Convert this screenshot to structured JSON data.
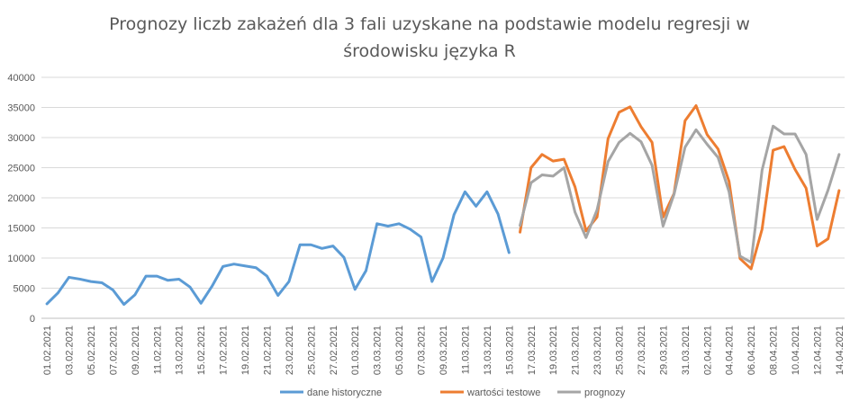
{
  "chart_data": {
    "type": "line",
    "title_line1": "Prognozy liczb zakażeń dla 3 fali uzyskane na podstawie modelu regresji w",
    "title_line2": "środowisku języka R",
    "ylim": [
      0,
      40000
    ],
    "y_ticks": [
      "0",
      "5000",
      "10000",
      "15000",
      "20000",
      "25000",
      "30000",
      "35000",
      "40000"
    ],
    "grid": true,
    "legend_position": "bottom",
    "categories": [
      "01.02.2021",
      "02.02.2021",
      "03.02.2021",
      "04.02.2021",
      "05.02.2021",
      "06.02.2021",
      "07.02.2021",
      "08.02.2021",
      "09.02.2021",
      "10.02.2021",
      "11.02.2021",
      "12.02.2021",
      "13.02.2021",
      "14.02.2021",
      "15.02.2021",
      "16.02.2021",
      "17.02.2021",
      "18.02.2021",
      "19.02.2021",
      "20.02.2021",
      "21.02.2021",
      "22.02.2021",
      "23.02.2021",
      "24.02.2021",
      "25.02.2021",
      "26.02.2021",
      "27.02.2021",
      "28.02.2021",
      "01.03.2021",
      "02.03.2021",
      "03.03.2021",
      "04.03.2021",
      "05.03.2021",
      "06.03.2021",
      "07.03.2021",
      "08.03.2021",
      "09.03.2021",
      "10.03.2021",
      "11.03.2021",
      "12.03.2021",
      "13.03.2021",
      "14.03.2021",
      "15.03.2021",
      "16.03.2021",
      "17.03.2021",
      "18.03.2021",
      "19.03.2021",
      "20.03.2021",
      "21.03.2021",
      "22.03.2021",
      "23.03.2021",
      "24.03.2021",
      "25.03.2021",
      "26.03.2021",
      "27.03.2021",
      "28.03.2021",
      "29.03.2021",
      "30.03.2021",
      "31.03.2021",
      "01.04.2021",
      "02.04.2021",
      "03.04.2021",
      "04.04.2021",
      "05.04.2021",
      "06.04.2021",
      "07.04.2021",
      "08.04.2021",
      "09.04.2021",
      "10.04.2021",
      "11.04.2021",
      "12.04.2021",
      "13.04.2021",
      "14.04.2021"
    ],
    "x_tick_labels": [
      "01.02.2021",
      "03.02.2021",
      "05.02.2021",
      "07.02.2021",
      "09.02.2021",
      "11.02.2021",
      "13.02.2021",
      "15.02.2021",
      "17.02.2021",
      "19.02.2021",
      "21.02.2021",
      "23.02.2021",
      "25.02.2021",
      "27.02.2021",
      "01.03.2021",
      "03.03.2021",
      "05.03.2021",
      "07.03.2021",
      "09.03.2021",
      "11.03.2021",
      "13.03.2021",
      "15.03.2021",
      "17.03.2021",
      "19.03.2021",
      "21.03.2021",
      "23.03.2021",
      "25.03.2021",
      "27.03.2021",
      "29.03.2021",
      "31.03.2021",
      "02.04.2021",
      "04.04.2021",
      "06.04.2021",
      "08.04.2021",
      "10.04.2021",
      "12.04.2021",
      "14.04.2021"
    ],
    "series": [
      {
        "name": "dane historyczne",
        "color": "#5b9bd5",
        "values": [
          2400,
          4200,
          6800,
          6500,
          6100,
          5900,
          4700,
          2300,
          3900,
          7000,
          7000,
          6300,
          6500,
          5200,
          2500,
          5300,
          8600,
          9000,
          8700,
          8400,
          7000,
          3800,
          6100,
          12200,
          12200,
          11600,
          12000,
          10100,
          4800,
          7900,
          15700,
          15300,
          15700,
          14800,
          13500,
          6100,
          10000,
          17200,
          21000,
          18600,
          21000,
          17300,
          10900,
          null,
          null,
          null,
          null,
          null,
          null,
          null,
          null,
          null,
          null,
          null,
          null,
          null,
          null,
          null,
          null,
          null,
          null,
          null,
          null,
          null,
          null,
          null,
          null,
          null,
          null,
          null,
          null,
          null,
          null
        ]
      },
      {
        "name": "wartości testowe",
        "color": "#ed7d31",
        "values": [
          null,
          null,
          null,
          null,
          null,
          null,
          null,
          null,
          null,
          null,
          null,
          null,
          null,
          null,
          null,
          null,
          null,
          null,
          null,
          null,
          null,
          null,
          null,
          null,
          null,
          null,
          null,
          null,
          null,
          null,
          null,
          null,
          null,
          null,
          null,
          null,
          null,
          null,
          null,
          null,
          null,
          null,
          null,
          14300,
          25000,
          27200,
          26100,
          26400,
          21800,
          14500,
          16800,
          29800,
          34200,
          35100,
          31800,
          29200,
          16800,
          20700,
          32800,
          35300,
          30500,
          28100,
          22700,
          9900,
          8200,
          14800,
          27900,
          28500,
          24700,
          21600,
          12000,
          13200,
          21200
        ]
      },
      {
        "name": "prognozy",
        "color": "#a5a5a5",
        "values": [
          null,
          null,
          null,
          null,
          null,
          null,
          null,
          null,
          null,
          null,
          null,
          null,
          null,
          null,
          null,
          null,
          null,
          null,
          null,
          null,
          null,
          null,
          null,
          null,
          null,
          null,
          null,
          null,
          null,
          null,
          null,
          null,
          null,
          null,
          null,
          null,
          null,
          null,
          null,
          null,
          null,
          null,
          null,
          15400,
          22500,
          23800,
          23600,
          25000,
          17600,
          13400,
          18000,
          26000,
          29200,
          30700,
          29300,
          25400,
          15300,
          20600,
          28400,
          31300,
          28900,
          26700,
          21000,
          10300,
          9300,
          24600,
          31900,
          30600,
          30600,
          27200,
          16400,
          21300,
          27200
        ]
      }
    ]
  }
}
